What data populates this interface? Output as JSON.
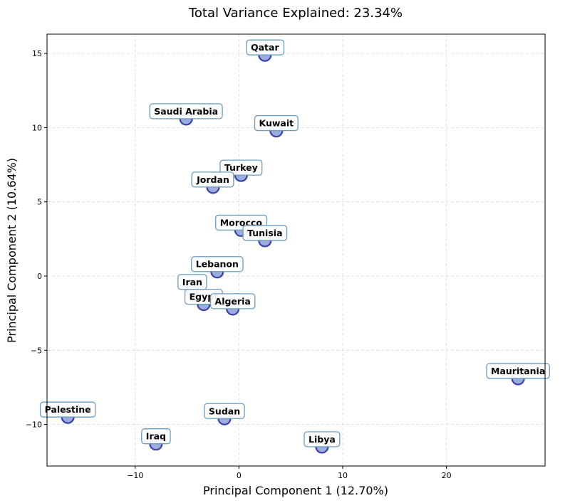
{
  "chart_data": {
    "type": "scatter",
    "title": "Total Variance Explained: 23.34%",
    "xlabel": "Principal Component 1 (12.70%)",
    "ylabel": "Principal Component 2 (10.64%)",
    "xlim": [
      -18.5,
      29.5
    ],
    "ylim": [
      -12.8,
      16.3
    ],
    "xticks": [
      -10,
      0,
      10,
      20
    ],
    "yticks": [
      -10,
      -5,
      0,
      5,
      10,
      15
    ],
    "xtick_labels": [
      "−10",
      "0",
      "10",
      "20"
    ],
    "ytick_labels": [
      "−10",
      "−5",
      "0",
      "5",
      "10",
      "15"
    ],
    "grid": true,
    "points": [
      {
        "label": "Qatar",
        "x": 2.5,
        "y": 14.9
      },
      {
        "label": "Saudi Arabia",
        "x": -5.1,
        "y": 10.6
      },
      {
        "label": "Kuwait",
        "x": 3.6,
        "y": 9.8
      },
      {
        "label": "Turkey",
        "x": 0.2,
        "y": 6.8
      },
      {
        "label": "Jordan",
        "x": -2.5,
        "y": 6.0
      },
      {
        "label": "Morocco",
        "x": 0.2,
        "y": 3.1
      },
      {
        "label": "Tunisia",
        "x": 2.5,
        "y": 2.4
      },
      {
        "label": "Lebanon",
        "x": -2.1,
        "y": 0.3
      },
      {
        "label": "Iran",
        "x": -4.5,
        "y": -0.9
      },
      {
        "label": "Egypt",
        "x": -3.4,
        "y": -1.9
      },
      {
        "label": "Algeria",
        "x": -0.6,
        "y": -2.2
      },
      {
        "label": "Mauritania",
        "x": 26.9,
        "y": -6.9
      },
      {
        "label": "Palestine",
        "x": -16.5,
        "y": -9.5
      },
      {
        "label": "Sudan",
        "x": -1.4,
        "y": -9.6
      },
      {
        "label": "Iraq",
        "x": -8.0,
        "y": -11.3
      },
      {
        "label": "Libya",
        "x": 8.0,
        "y": -11.5
      }
    ]
  }
}
